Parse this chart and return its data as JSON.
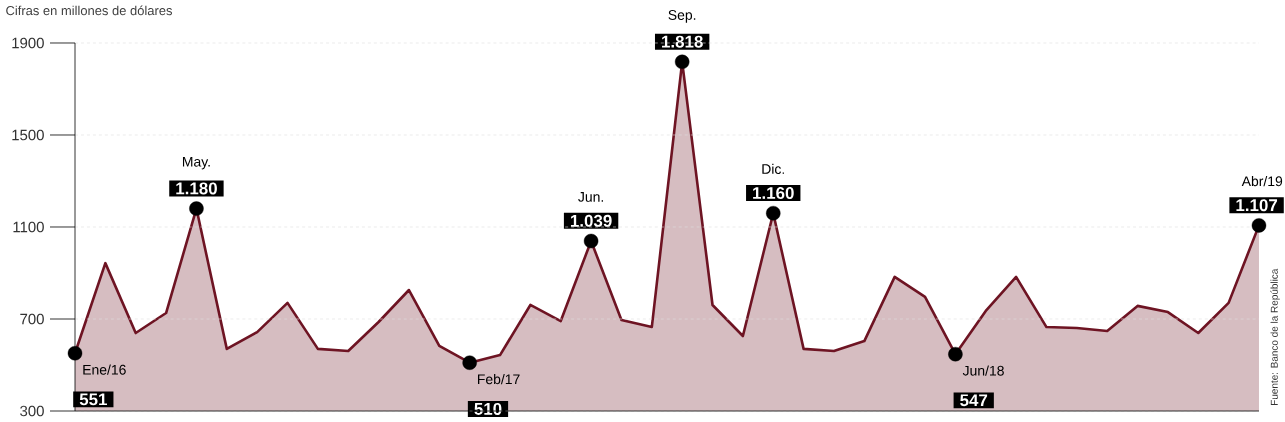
{
  "chart_data": {
    "type": "area",
    "subtitle": "Cifras en millones de dólares",
    "categories": [
      null,
      null,
      null,
      null,
      null,
      null,
      null,
      null,
      null,
      null,
      null,
      null,
      null,
      null,
      null,
      null,
      null,
      null,
      null,
      null,
      null,
      null,
      null,
      null,
      null,
      null,
      null,
      null,
      null,
      null,
      null,
      null,
      null,
      null,
      null,
      null,
      null,
      null,
      null,
      null
    ],
    "ylim": [
      300,
      1900
    ],
    "yticks": [
      300,
      700,
      1100,
      1500,
      1900
    ],
    "grid": "y",
    "series": [
      {
        "color": "#6e1423",
        "values": [
          551,
          943,
          639,
          726,
          1180,
          570,
          643,
          770,
          570,
          561,
          687,
          826,
          583,
          510,
          543,
          761,
          691,
          1039,
          696,
          665,
          1818,
          761,
          626,
          1160,
          570,
          561,
          604,
          883,
          796,
          547,
          735,
          883,
          665,
          661,
          648,
          757,
          730,
          639,
          770,
          1107
        ],
        "value_labels": [
          "551",
          null,
          null,
          null,
          "1.180",
          null,
          null,
          null,
          null,
          null,
          null,
          null,
          null,
          "510",
          null,
          null,
          null,
          "1.039",
          null,
          null,
          "1.818",
          null,
          null,
          "1.160",
          null,
          null,
          null,
          null,
          null,
          "547",
          null,
          null,
          null,
          null,
          null,
          null,
          null,
          null,
          null,
          "1.107"
        ]
      }
    ],
    "annotations": [
      "Ene/16",
      "May.",
      "Feb/17",
      "Jun.",
      "Sep.",
      "Dic.",
      "Jun/18",
      "Abr/19",
      "Fuente: Banco de la República"
    ]
  }
}
